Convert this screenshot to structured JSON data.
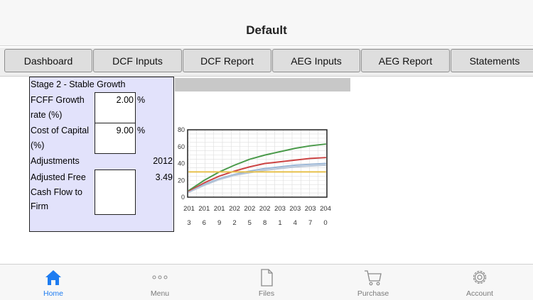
{
  "header": {
    "title": "Default"
  },
  "tabs": [
    {
      "label": "Dashboard"
    },
    {
      "label": "DCF Inputs"
    },
    {
      "label": "DCF Report"
    },
    {
      "label": "AEG Inputs"
    },
    {
      "label": "AEG Report"
    },
    {
      "label": "Statements"
    }
  ],
  "panel": {
    "heading": "Stage 2 - Stable Growth",
    "fcff_label_1": "FCFF Growth",
    "fcff_label_2": "rate (%)",
    "fcff_value": "2.00",
    "coc_label_1": "Cost of Capital",
    "coc_label_2": "(%)",
    "coc_value": "9.00",
    "percent_sign": "%",
    "adjustments_label": "Adjustments",
    "adjustments_year": "2012",
    "afcf_label_1": "Adjusted Free",
    "afcf_label_2": "Cash Flow to",
    "afcf_label_3": "Firm",
    "afcf_amount": "3.49",
    "afcf_value": ""
  },
  "chart_data": {
    "type": "line",
    "x": [
      2013,
      2016,
      2019,
      2022,
      2025,
      2028,
      2031,
      2034,
      2037,
      2040
    ],
    "x_tick_top": [
      "201",
      "201",
      "201",
      "202",
      "202",
      "202",
      "203",
      "203",
      "203",
      "204"
    ],
    "x_tick_bottom": [
      "3",
      "6",
      "9",
      "2",
      "5",
      "8",
      "1",
      "4",
      "7",
      "0"
    ],
    "y_ticks": [
      "0",
      "20",
      "40",
      "60",
      "80"
    ],
    "ylim": [
      0,
      80
    ],
    "grid": true,
    "series": [
      {
        "color": "#4a9a4a",
        "values": [
          8,
          20,
          30,
          38,
          45,
          50,
          54,
          58,
          61,
          63
        ]
      },
      {
        "color": "#cc4444",
        "values": [
          7,
          17,
          25,
          31,
          36,
          40,
          42,
          44,
          46,
          47
        ]
      },
      {
        "color": "#9ab6d6",
        "values": [
          6,
          15,
          22,
          27,
          31,
          34,
          36,
          38,
          39,
          40
        ]
      },
      {
        "color": "#b8c6d8",
        "values": [
          6,
          14,
          21,
          26,
          29,
          32,
          34,
          36,
          37,
          38
        ]
      },
      {
        "color": "#e6c04a",
        "values": [
          30,
          30,
          30,
          30,
          30,
          30,
          30,
          30,
          30,
          30
        ]
      }
    ]
  },
  "bottom_nav": [
    {
      "label": "Home",
      "icon": "home-icon",
      "color": "#1e7cf1"
    },
    {
      "label": "Menu",
      "icon": "more-icon"
    },
    {
      "label": "Files",
      "icon": "file-icon"
    },
    {
      "label": "Purchase",
      "icon": "cart-icon"
    },
    {
      "label": "Account",
      "icon": "gear-icon"
    }
  ]
}
